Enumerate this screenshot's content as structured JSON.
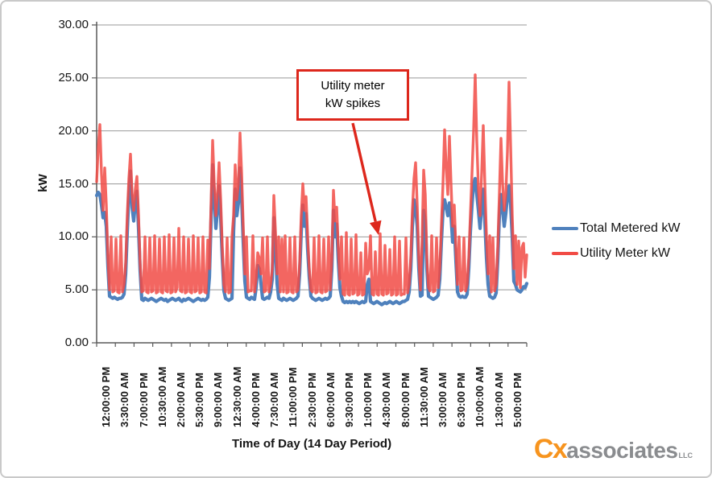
{
  "chart_data": {
    "type": "line",
    "title": "",
    "xlabel": "Time of Day (14 Day Period)",
    "ylabel": "kW",
    "ylim": [
      0,
      30
    ],
    "grid": "horizontal",
    "legend_position": "right",
    "colors": {
      "gridline": "#999999",
      "axis": "#595959",
      "annotation_red": "#dd271c"
    },
    "y_ticks": [
      {
        "label": "30.00",
        "value": 30
      },
      {
        "label": "25.00",
        "value": 25
      },
      {
        "label": "20.00",
        "value": 20
      },
      {
        "label": "15.00",
        "value": 15
      },
      {
        "label": "10.00",
        "value": 10
      },
      {
        "label": "5.00",
        "value": 5
      },
      {
        "label": "0.00",
        "value": 0
      }
    ],
    "x_tick_labels": [
      "12:00:00 PM",
      "3:30:00 AM",
      "7:00:00 PM",
      "10:30:00 AM",
      "2:00:00 AM",
      "5:30:00 PM",
      "9:00:00 AM",
      "12:30:00 AM",
      "4:00:00 PM",
      "7:30:00 AM",
      "11:00:00 PM",
      "2:30:00 PM",
      "6:00:00 AM",
      "9:30:00 PM",
      "1:00:00 PM",
      "4:30:00 AM",
      "8:00:00 PM",
      "11:30:00 AM",
      "3:00:00 AM",
      "6:30:00 PM",
      "10:00:00 AM",
      "1:30:00 AM",
      "5:00:00 PM"
    ],
    "annotation": {
      "line1": "Utility meter",
      "line2": "kW spikes",
      "points_to_kw": 10
    },
    "series": [
      {
        "name": "Total Metered kW",
        "color": "#4f81bd",
        "values": [
          13.9,
          14.2,
          14.0,
          13.0,
          11.8,
          12.3,
          11.0,
          7.2,
          4.4,
          4.3,
          4.2,
          4.3,
          4.2,
          4.1,
          4.2,
          4.2,
          4.3,
          4.6,
          6.5,
          10.5,
          14.0,
          16.2,
          12.8,
          11.5,
          13.2,
          14.3,
          10.8,
          6.8,
          4.1,
          4.0,
          4.2,
          4.1,
          4.0,
          4.1,
          4.2,
          4.1,
          4.0,
          3.9,
          4.0,
          4.1,
          4.2,
          4.1,
          4.0,
          4.1,
          3.9,
          4.0,
          4.1,
          4.2,
          4.1,
          4.0,
          4.1,
          4.2,
          4.0,
          3.9,
          4.1,
          4.0,
          4.1,
          4.2,
          4.1,
          4.0,
          3.9,
          4.0,
          4.1,
          4.2,
          4.1,
          4.0,
          4.1,
          4.0,
          4.1,
          4.3,
          6.2,
          11.5,
          16.8,
          13.5,
          10.8,
          12.5,
          14.8,
          11.8,
          8.0,
          4.9,
          4.2,
          4.1,
          4.0,
          4.1,
          4.2,
          10.5,
          14.5,
          12.0,
          13.2,
          16.5,
          13.8,
          9.5,
          5.8,
          4.3,
          4.2,
          4.1,
          4.3,
          4.2,
          4.1,
          5.2,
          7.3,
          7.0,
          5.6,
          4.2,
          4.1,
          4.2,
          4.3,
          4.2,
          4.8,
          6.0,
          11.8,
          9.0,
          5.6,
          4.2,
          4.1,
          4.0,
          4.2,
          4.1,
          4.0,
          4.1,
          4.2,
          4.1,
          4.0,
          4.1,
          4.2,
          4.4,
          6.5,
          10.5,
          13.0,
          11.0,
          12.2,
          8.8,
          6.2,
          4.4,
          4.2,
          4.1,
          4.0,
          4.1,
          4.2,
          4.1,
          4.0,
          4.1,
          4.2,
          4.1,
          4.2,
          4.4,
          7.0,
          12.5,
          10.0,
          11.2,
          7.8,
          5.2,
          4.4,
          3.9,
          3.8,
          3.9,
          3.8,
          3.9,
          3.8,
          3.9,
          3.8,
          3.9,
          3.8,
          3.7,
          3.8,
          3.9,
          3.8,
          3.9,
          5.5,
          6.0,
          3.9,
          3.8,
          3.7,
          3.8,
          3.9,
          3.8,
          3.7,
          3.6,
          3.7,
          3.8,
          3.7,
          3.8,
          3.9,
          3.8,
          3.7,
          3.8,
          3.9,
          3.8,
          3.7,
          3.8,
          3.9,
          3.9,
          4.0,
          4.1,
          4.8,
          7.0,
          11.0,
          13.5,
          12.8,
          11.0,
          7.0,
          4.4,
          4.5,
          12.5,
          11.5,
          7.0,
          4.4,
          4.3,
          4.2,
          4.1,
          4.2,
          4.3,
          4.5,
          6.0,
          9.5,
          12.5,
          13.5,
          12.8,
          12.0,
          13.2,
          12.0,
          9.5,
          11.0,
          7.8,
          4.8,
          4.4,
          4.3,
          4.4,
          4.3,
          4.3,
          4.6,
          7.0,
          10.5,
          13.0,
          15.0,
          15.5,
          14.0,
          12.5,
          10.8,
          12.8,
          14.5,
          11.5,
          8.0,
          5.5,
          4.4,
          4.3,
          4.2,
          4.3,
          4.7,
          7.8,
          12.0,
          14.0,
          12.5,
          11.0,
          12.2,
          13.8,
          14.8,
          13.0,
          10.0,
          5.8,
          5.5,
          5.0,
          4.9,
          4.8,
          5.0,
          5.3,
          5.2,
          5.6
        ]
      },
      {
        "name": "Utility Meter kW",
        "color": "#f14b45",
        "values": [
          15.2,
          18.5,
          20.6,
          16.0,
          12.5,
          16.5,
          13.0,
          8.0,
          5.0,
          10.0,
          4.8,
          4.9,
          9.8,
          4.8,
          4.7,
          10.1,
          4.8,
          5.5,
          7.5,
          12.0,
          15.5,
          17.8,
          14.0,
          12.5,
          14.5,
          15.7,
          12.0,
          7.5,
          4.8,
          4.9,
          10.0,
          4.8,
          4.7,
          9.9,
          4.8,
          4.9,
          10.1,
          4.7,
          4.8,
          9.8,
          4.8,
          4.7,
          10.0,
          4.9,
          4.8,
          10.2,
          4.7,
          4.8,
          9.9,
          4.8,
          5.2,
          10.8,
          4.9,
          4.8,
          10.0,
          4.7,
          4.8,
          9.8,
          4.8,
          4.7,
          10.1,
          4.8,
          4.9,
          9.9,
          4.7,
          4.8,
          10.0,
          4.8,
          4.7,
          9.7,
          7.0,
          13.0,
          19.1,
          15.0,
          12.0,
          14.0,
          17.0,
          13.5,
          9.0,
          5.5,
          4.8,
          9.9,
          4.7,
          4.8,
          10.0,
          12.0,
          16.8,
          13.5,
          15.0,
          19.8,
          16.0,
          11.0,
          6.5,
          10.0,
          4.8,
          4.9,
          4.9,
          10.1,
          4.8,
          6.0,
          8.5,
          8.0,
          6.5,
          9.9,
          4.8,
          4.9,
          10.0,
          4.8,
          5.5,
          7.0,
          13.9,
          10.5,
          6.5,
          10.0,
          4.8,
          9.8,
          4.8,
          10.1,
          4.7,
          4.8,
          9.9,
          4.8,
          4.7,
          10.0,
          4.8,
          5.0,
          7.5,
          12.0,
          15.0,
          12.5,
          13.8,
          10.0,
          7.0,
          5.0,
          4.8,
          9.9,
          4.7,
          4.8,
          10.1,
          4.8,
          4.7,
          9.8,
          4.8,
          4.9,
          10.0,
          5.0,
          8.0,
          14.4,
          11.5,
          12.8,
          9.0,
          6.0,
          10.0,
          4.6,
          4.5,
          10.4,
          4.6,
          4.5,
          9.8,
          4.6,
          4.7,
          10.2,
          4.5,
          4.6,
          8.5,
          4.5,
          4.6,
          9.4,
          6.5,
          7.0,
          10.1,
          4.6,
          4.5,
          8.6,
          4.6,
          4.5,
          10.3,
          4.6,
          4.5,
          9.2,
          4.6,
          4.7,
          8.8,
          4.5,
          4.6,
          10.0,
          4.5,
          4.6,
          9.6,
          4.5,
          4.6,
          4.6,
          9.9,
          4.7,
          5.5,
          8.0,
          12.5,
          15.5,
          17.0,
          13.0,
          8.0,
          5.0,
          9.5,
          16.3,
          14.0,
          8.0,
          5.2,
          4.9,
          10.1,
          4.8,
          4.9,
          9.9,
          5.2,
          7.0,
          11.0,
          15.0,
          20.1,
          16.5,
          14.0,
          19.5,
          15.0,
          11.0,
          13.0,
          9.0,
          5.5,
          10.0,
          4.9,
          5.0,
          9.9,
          4.9,
          5.5,
          8.0,
          12.0,
          16.0,
          20.0,
          25.3,
          19.0,
          14.5,
          12.0,
          16.0,
          20.5,
          15.0,
          10.0,
          6.5,
          10.1,
          4.8,
          9.9,
          4.9,
          5.5,
          9.0,
          14.0,
          19.3,
          15.0,
          12.5,
          14.0,
          18.0,
          24.6,
          18.5,
          12.0,
          7.0,
          10.1,
          5.5,
          9.6,
          5.2,
          9.0,
          9.4,
          6.2,
          8.3
        ]
      }
    ]
  },
  "branding": {
    "logo_prefix": "Cx",
    "logo_main": "associates",
    "logo_suffix": "LLC",
    "prefix_color": "#f7941e",
    "main_color": "#8a8c8f"
  }
}
